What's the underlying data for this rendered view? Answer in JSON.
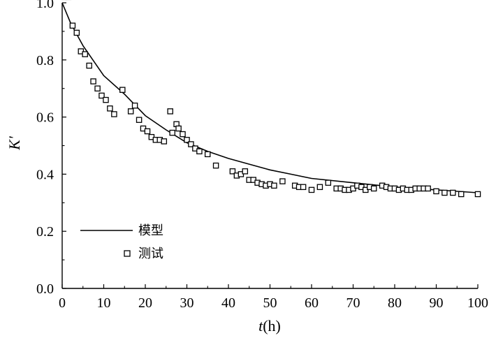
{
  "chart_data": {
    "type": "line",
    "xlabel": {
      "var": "t",
      "unit": "(h)"
    },
    "ylabel": "K'",
    "xlim": [
      0,
      100
    ],
    "ylim": [
      0.0,
      1.0
    ],
    "xticks": [
      0,
      10,
      20,
      30,
      40,
      50,
      60,
      70,
      80,
      90,
      100
    ],
    "yticks": [
      0.0,
      0.2,
      0.4,
      0.6,
      0.8,
      1.0
    ],
    "ytick_labels": [
      "0.0",
      "0.2",
      "0.4",
      "0.6",
      "0.8",
      "1.0"
    ],
    "grid": false,
    "legend_position": "bottom-left",
    "series": [
      {
        "name": "模型",
        "style": "line",
        "color": "#000000",
        "x": [
          0,
          2,
          5,
          10,
          15,
          20,
          25,
          30,
          35,
          40,
          45,
          50,
          55,
          60,
          70,
          80,
          90,
          100
        ],
        "y": [
          1.0,
          0.93,
          0.85,
          0.745,
          0.68,
          0.605,
          0.555,
          0.51,
          0.48,
          0.455,
          0.435,
          0.415,
          0.4,
          0.385,
          0.37,
          0.355,
          0.345,
          0.335
        ]
      },
      {
        "name": "测试",
        "style": "marker",
        "marker": "open-square",
        "color": "#000000",
        "x": [
          0.5,
          1.5,
          2.5,
          3.5,
          4.5,
          5.5,
          6.5,
          7.5,
          8.5,
          9.5,
          10.5,
          11.5,
          12.5,
          14.5,
          16.5,
          17.5,
          18.5,
          19.5,
          20.5,
          21.5,
          22.5,
          23.5,
          24.5,
          26,
          26.5,
          27.5,
          28,
          29,
          30,
          31,
          32,
          33,
          35,
          37,
          41,
          42,
          43,
          44,
          45,
          46,
          47,
          48,
          49,
          50,
          51,
          53,
          56,
          57,
          58,
          60,
          62,
          64,
          66,
          67,
          68,
          69,
          70,
          71,
          72,
          73,
          74,
          75,
          77,
          78,
          79,
          80,
          81,
          82,
          83,
          84,
          85,
          86,
          87,
          88,
          90,
          92,
          94,
          96,
          100
        ],
        "y": [
          1.02,
          1.02,
          0.92,
          0.895,
          0.83,
          0.82,
          0.78,
          0.725,
          0.7,
          0.675,
          0.66,
          0.63,
          0.61,
          0.695,
          0.62,
          0.64,
          0.59,
          0.56,
          0.55,
          0.53,
          0.52,
          0.52,
          0.515,
          0.62,
          0.545,
          0.575,
          0.56,
          0.54,
          0.52,
          0.505,
          0.49,
          0.48,
          0.47,
          0.43,
          0.41,
          0.395,
          0.4,
          0.41,
          0.38,
          0.38,
          0.37,
          0.365,
          0.36,
          0.365,
          0.36,
          0.375,
          0.36,
          0.355,
          0.355,
          0.345,
          0.355,
          0.37,
          0.35,
          0.35,
          0.345,
          0.345,
          0.35,
          0.36,
          0.355,
          0.345,
          0.355,
          0.35,
          0.36,
          0.355,
          0.35,
          0.35,
          0.345,
          0.35,
          0.345,
          0.345,
          0.35,
          0.35,
          0.35,
          0.35,
          0.34,
          0.335,
          0.335,
          0.33,
          0.33
        ]
      }
    ]
  }
}
